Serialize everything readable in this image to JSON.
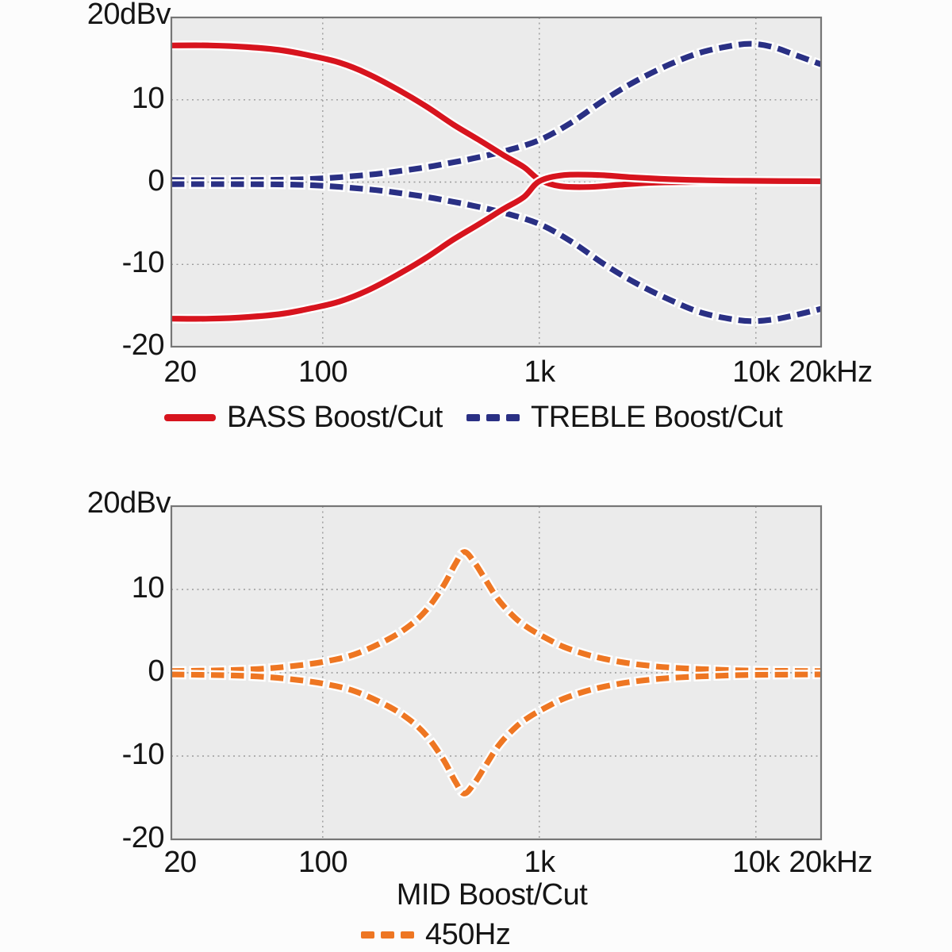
{
  "chart_data": [
    {
      "type": "line",
      "name": "bass-treble-response",
      "y_axis_top_label": "20dBv",
      "xlabel": "",
      "x_scale": "log",
      "xlim": [
        20,
        20000
      ],
      "ylim": [
        -20,
        20
      ],
      "grid": "dotted",
      "grid_color": "#9a9a9a",
      "plot_bg": "#ebebeb",
      "x_grid_values": [
        100,
        1000,
        10000
      ],
      "y_grid_values": [
        10,
        0,
        -10
      ],
      "x_ticks": [
        {
          "value": 20,
          "label": "20"
        },
        {
          "value": 100,
          "label": "100"
        },
        {
          "value": 1000,
          "label": "1k"
        },
        {
          "value": 10000,
          "label": "10k"
        },
        {
          "value": 20000,
          "label": "20kHz"
        }
      ],
      "y_ticks": [
        {
          "value": 10,
          "label": "10"
        },
        {
          "value": 0,
          "label": "0"
        },
        {
          "value": -10,
          "label": "-10"
        },
        {
          "value": -20,
          "label": "-20"
        }
      ],
      "legend_position": "below",
      "legend": [
        {
          "label": "BASS Boost/Cut",
          "color": "#d7141e",
          "style": "solid"
        },
        {
          "label": "TREBLE Boost/Cut",
          "color": "#2a3084",
          "style": "dashed"
        }
      ],
      "series": [
        {
          "name": "treble-boost",
          "color": "#2a3084",
          "style": "dashed",
          "points": [
            [
              20,
              0.25
            ],
            [
              40,
              0.25
            ],
            [
              70,
              0.3
            ],
            [
              100,
              0.45
            ],
            [
              150,
              0.8
            ],
            [
              200,
              1.15
            ],
            [
              300,
              1.8
            ],
            [
              400,
              2.4
            ],
            [
              500,
              2.9
            ],
            [
              700,
              3.8
            ],
            [
              1000,
              5.1
            ],
            [
              1400,
              7.2
            ],
            [
              2000,
              10.0
            ],
            [
              2800,
              12.3
            ],
            [
              4000,
              14.3
            ],
            [
              5500,
              15.7
            ],
            [
              7500,
              16.5
            ],
            [
              9500,
              16.8
            ],
            [
              12000,
              16.4
            ],
            [
              15000,
              15.5
            ],
            [
              20000,
              14.3
            ]
          ]
        },
        {
          "name": "treble-cut",
          "color": "#2a3084",
          "style": "dashed",
          "points": [
            [
              20,
              -0.25
            ],
            [
              40,
              -0.25
            ],
            [
              70,
              -0.3
            ],
            [
              100,
              -0.45
            ],
            [
              150,
              -0.8
            ],
            [
              200,
              -1.15
            ],
            [
              300,
              -1.8
            ],
            [
              400,
              -2.4
            ],
            [
              500,
              -2.9
            ],
            [
              700,
              -3.8
            ],
            [
              1000,
              -5.1
            ],
            [
              1400,
              -7.2
            ],
            [
              2000,
              -10.0
            ],
            [
              2800,
              -12.3
            ],
            [
              4000,
              -14.3
            ],
            [
              5500,
              -15.8
            ],
            [
              7500,
              -16.6
            ],
            [
              9500,
              -16.9
            ],
            [
              12000,
              -16.7
            ],
            [
              15000,
              -16.2
            ],
            [
              20000,
              -15.4
            ]
          ]
        },
        {
          "name": "bass-boost",
          "color": "#d7141e",
          "style": "solid",
          "points": [
            [
              20,
              16.6
            ],
            [
              30,
              16.6
            ],
            [
              45,
              16.4
            ],
            [
              65,
              16.0
            ],
            [
              90,
              15.3
            ],
            [
              120,
              14.5
            ],
            [
              160,
              13.2
            ],
            [
              220,
              11.3
            ],
            [
              300,
              9.2
            ],
            [
              400,
              7.0
            ],
            [
              520,
              5.2
            ],
            [
              680,
              3.3
            ],
            [
              850,
              1.8
            ],
            [
              1000,
              0.3
            ],
            [
              1250,
              -0.5
            ],
            [
              1700,
              -0.6
            ],
            [
              2300,
              -0.35
            ],
            [
              3200,
              -0.1
            ],
            [
              5000,
              0.0
            ],
            [
              9000,
              0.05
            ],
            [
              20000,
              0.05
            ]
          ]
        },
        {
          "name": "bass-cut",
          "color": "#d7141e",
          "style": "solid",
          "points": [
            [
              20,
              -16.6
            ],
            [
              30,
              -16.6
            ],
            [
              45,
              -16.4
            ],
            [
              65,
              -16.0
            ],
            [
              90,
              -15.3
            ],
            [
              120,
              -14.5
            ],
            [
              160,
              -13.2
            ],
            [
              220,
              -11.3
            ],
            [
              300,
              -9.2
            ],
            [
              400,
              -7.0
            ],
            [
              520,
              -5.2
            ],
            [
              680,
              -3.3
            ],
            [
              850,
              -1.8
            ],
            [
              1000,
              0.1
            ],
            [
              1300,
              0.85
            ],
            [
              1900,
              0.85
            ],
            [
              2600,
              0.6
            ],
            [
              3600,
              0.4
            ],
            [
              5200,
              0.25
            ],
            [
              9000,
              0.15
            ],
            [
              20000,
              0.1
            ]
          ]
        }
      ]
    },
    {
      "type": "line",
      "name": "mid-response",
      "y_axis_top_label": "20dBv",
      "xlabel": "MID Boost/Cut",
      "x_scale": "log",
      "xlim": [
        20,
        20000
      ],
      "ylim": [
        -20,
        20
      ],
      "grid": "dotted",
      "grid_color": "#9a9a9a",
      "plot_bg": "#ebebeb",
      "x_grid_values": [
        100,
        1000,
        10000
      ],
      "y_grid_values": [
        10,
        0,
        -10
      ],
      "x_ticks": [
        {
          "value": 20,
          "label": "20"
        },
        {
          "value": 100,
          "label": "100"
        },
        {
          "value": 1000,
          "label": "1k"
        },
        {
          "value": 10000,
          "label": "10k"
        },
        {
          "value": 20000,
          "label": "20kHz"
        }
      ],
      "y_ticks": [
        {
          "value": 10,
          "label": "10"
        },
        {
          "value": 0,
          "label": "0"
        },
        {
          "value": -10,
          "label": "-10"
        },
        {
          "value": -20,
          "label": "-20"
        }
      ],
      "legend_position": "below",
      "legend": [
        {
          "label": "450Hz",
          "color": "#ee7622",
          "style": "dashed"
        }
      ],
      "series": [
        {
          "name": "mid-boost-450hz",
          "color": "#ee7622",
          "style": "dashed",
          "points": [
            [
              20,
              0.2
            ],
            [
              35,
              0.3
            ],
            [
              50,
              0.45
            ],
            [
              70,
              0.75
            ],
            [
              100,
              1.3
            ],
            [
              140,
              2.2
            ],
            [
              200,
              4.0
            ],
            [
              250,
              5.6
            ],
            [
              300,
              7.5
            ],
            [
              360,
              10.4
            ],
            [
              410,
              13.1
            ],
            [
              450,
              14.5
            ],
            [
              500,
              13.3
            ],
            [
              560,
              11.3
            ],
            [
              650,
              8.7
            ],
            [
              780,
              6.5
            ],
            [
              900,
              5.3
            ],
            [
              1050,
              4.3
            ],
            [
              1300,
              3.1
            ],
            [
              1700,
              2.1
            ],
            [
              2300,
              1.35
            ],
            [
              3200,
              0.85
            ],
            [
              4500,
              0.55
            ],
            [
              7000,
              0.35
            ],
            [
              10000,
              0.25
            ],
            [
              20000,
              0.2
            ]
          ]
        },
        {
          "name": "mid-cut-450hz",
          "color": "#ee7622",
          "style": "dashed",
          "points": [
            [
              20,
              -0.2
            ],
            [
              35,
              -0.3
            ],
            [
              50,
              -0.45
            ],
            [
              70,
              -0.75
            ],
            [
              100,
              -1.3
            ],
            [
              140,
              -2.2
            ],
            [
              200,
              -4.0
            ],
            [
              250,
              -5.6
            ],
            [
              300,
              -7.5
            ],
            [
              360,
              -10.4
            ],
            [
              410,
              -13.1
            ],
            [
              450,
              -14.5
            ],
            [
              500,
              -13.3
            ],
            [
              560,
              -11.3
            ],
            [
              650,
              -8.7
            ],
            [
              780,
              -6.5
            ],
            [
              900,
              -5.3
            ],
            [
              1050,
              -4.3
            ],
            [
              1300,
              -3.1
            ],
            [
              1700,
              -2.1
            ],
            [
              2300,
              -1.35
            ],
            [
              3200,
              -0.85
            ],
            [
              4500,
              -0.55
            ],
            [
              7000,
              -0.35
            ],
            [
              10000,
              -0.25
            ],
            [
              20000,
              -0.2
            ]
          ]
        }
      ]
    }
  ]
}
